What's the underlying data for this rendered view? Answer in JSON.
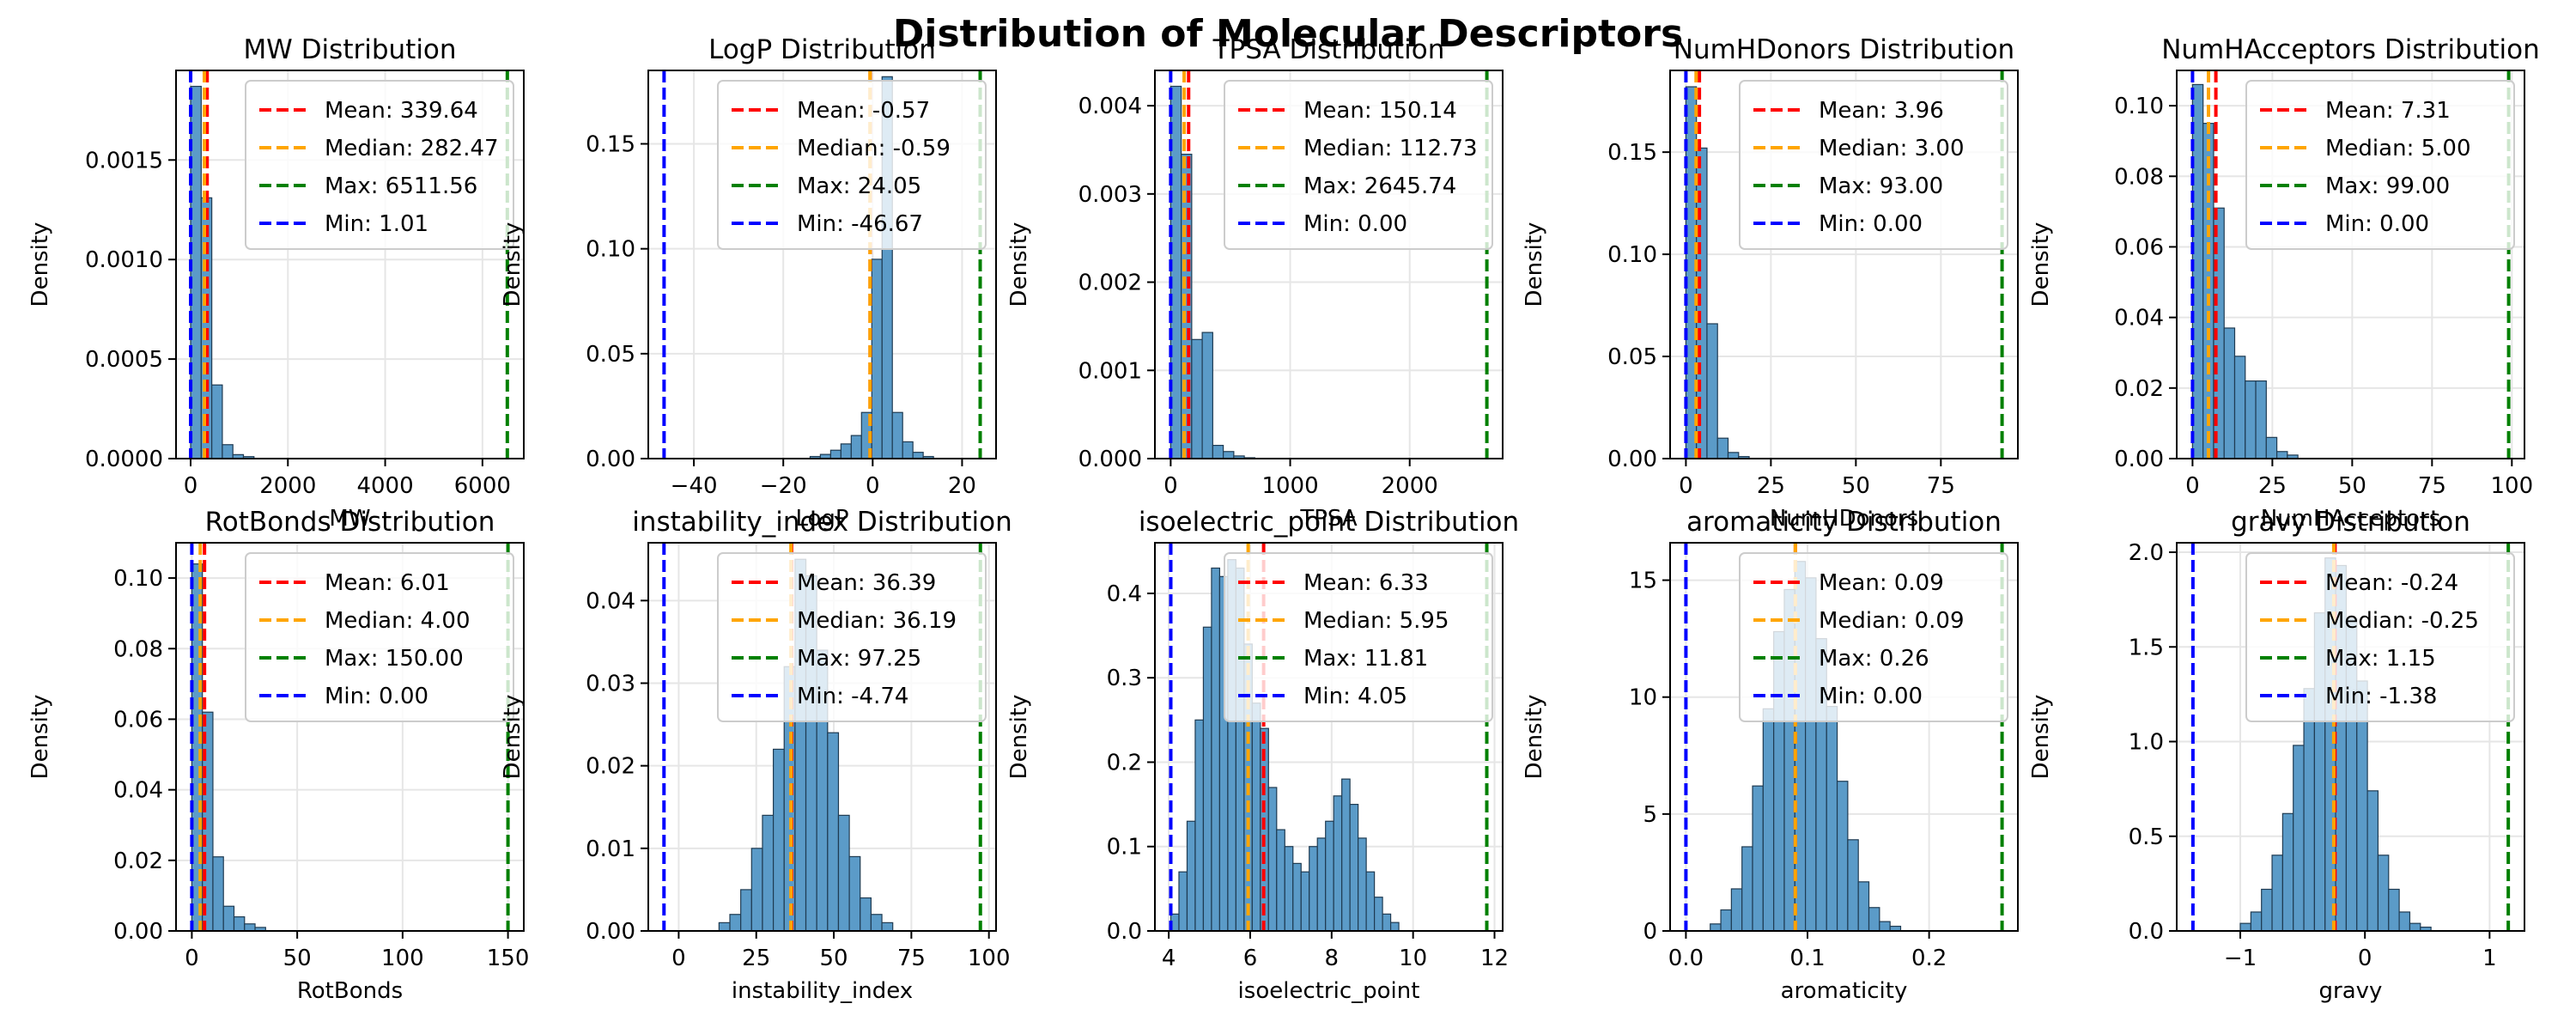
{
  "figure_title": "Distribution of Molecular Descriptors",
  "colors": {
    "bar_fill": "#5b9bc8",
    "bar_edge": "#1f3b52",
    "mean": "#ff0000",
    "median": "#ffa500",
    "max": "#008000",
    "min": "#0000ff",
    "grid": "#e6e6e6"
  },
  "chart_data": [
    {
      "type": "bar",
      "title": "MW Distribution",
      "xlabel": "MW",
      "ylabel": "Density",
      "xlim": [
        -300,
        6850
      ],
      "ylim": [
        0,
        0.00195
      ],
      "xticks": [
        0,
        2000,
        4000,
        6000
      ],
      "xtick_labels": [
        "0",
        "2000",
        "4000",
        "6000"
      ],
      "yticks": [
        0,
        0.0005,
        0.001,
        0.0015
      ],
      "ytick_labels": [
        "0.0000",
        "0.0005",
        "0.0010",
        "0.0015"
      ],
      "bin_start": 1.01,
      "bin_width": 217,
      "values": [
        0.00187,
        0.00131,
        0.00037,
        7e-05,
        2e-05,
        1e-05
      ],
      "lines": {
        "mean": 339.64,
        "median": 282.47,
        "max": 6511.56,
        "min": 1.01
      },
      "legend": [
        "Mean: 339.64",
        "Median: 282.47",
        "Max: 6511.56",
        "Min: 1.01"
      ],
      "legend_pos": "top-right",
      "grid": true
    },
    {
      "type": "bar",
      "title": "LogP Distribution",
      "xlabel": "LogP",
      "ylabel": "Density",
      "xlim": [
        -50.2,
        27.6
      ],
      "ylim": [
        0,
        0.185
      ],
      "xticks": [
        -40,
        -20,
        0,
        20
      ],
      "xtick_labels": [
        "−40",
        "−20",
        "0",
        "20"
      ],
      "yticks": [
        0,
        0.05,
        0.1,
        0.15
      ],
      "ytick_labels": [
        "0.00",
        "0.05",
        "0.10",
        "0.15"
      ],
      "bin_start": -14,
      "bin_width": 2.3,
      "values": [
        0.001,
        0.002,
        0.004,
        0.007,
        0.011,
        0.022,
        0.095,
        0.182,
        0.022,
        0.008,
        0.003,
        0.001
      ],
      "lines": {
        "mean": -0.57,
        "median": -0.59,
        "max": 24.05,
        "min": -46.67
      },
      "legend": [
        "Mean: -0.57",
        "Median: -0.59",
        "Max: 24.05",
        "Min: -46.67"
      ],
      "legend_pos": "top-right",
      "grid": true
    },
    {
      "type": "bar",
      "title": "TPSA Distribution",
      "xlabel": "TPSA",
      "ylabel": "Density",
      "xlim": [
        -132,
        2778
      ],
      "ylim": [
        0,
        0.0044
      ],
      "xticks": [
        0,
        1000,
        2000
      ],
      "xtick_labels": [
        "0",
        "1000",
        "2000"
      ],
      "yticks": [
        0,
        0.001,
        0.002,
        0.003,
        0.004
      ],
      "ytick_labels": [
        "0.000",
        "0.001",
        "0.002",
        "0.003",
        "0.004"
      ],
      "bin_start": 0,
      "bin_width": 88,
      "values": [
        0.00422,
        0.00345,
        0.00135,
        0.00143,
        0.00015,
        8e-05,
        3e-05,
        1e-05
      ],
      "lines": {
        "mean": 150.14,
        "median": 112.73,
        "max": 2645.74,
        "min": 0.0
      },
      "legend": [
        "Mean: 150.14",
        "Median: 112.73",
        "Max: 2645.74",
        "Min: 0.00"
      ],
      "legend_pos": "top-right",
      "grid": true
    },
    {
      "type": "bar",
      "title": "NumHDonors Distribution",
      "xlabel": "NumHDonors",
      "ylabel": "Density",
      "xlim": [
        -4.65,
        97.65
      ],
      "ylim": [
        0,
        0.19
      ],
      "xticks": [
        0,
        25,
        50,
        75
      ],
      "xtick_labels": [
        "0",
        "25",
        "50",
        "75"
      ],
      "yticks": [
        0,
        0.05,
        0.1,
        0.15
      ],
      "ytick_labels": [
        "0.00",
        "0.05",
        "0.10",
        "0.15"
      ],
      "bin_start": 0,
      "bin_width": 3.1,
      "values": [
        0.182,
        0.152,
        0.066,
        0.01,
        0.003,
        0.001
      ],
      "lines": {
        "mean": 3.96,
        "median": 3.0,
        "max": 93.0,
        "min": 0.0
      },
      "legend": [
        "Mean: 3.96",
        "Median: 3.00",
        "Max: 93.00",
        "Min: 0.00"
      ],
      "legend_pos": "top-right",
      "grid": true
    },
    {
      "type": "bar",
      "title": "NumHAcceptors Distribution",
      "xlabel": "NumHAcceptors",
      "ylabel": "Density",
      "xlim": [
        -4.95,
        103.95
      ],
      "ylim": [
        0,
        0.11
      ],
      "xticks": [
        0,
        25,
        50,
        75,
        100
      ],
      "xtick_labels": [
        "0",
        "25",
        "50",
        "75",
        "100"
      ],
      "yticks": [
        0,
        0.02,
        0.04,
        0.06,
        0.08,
        0.1
      ],
      "ytick_labels": [
        "0.00",
        "0.02",
        "0.04",
        "0.06",
        "0.08",
        "0.10"
      ],
      "bin_start": 0,
      "bin_width": 3.3,
      "values": [
        0.106,
        0.095,
        0.071,
        0.037,
        0.029,
        0.022,
        0.022,
        0.006,
        0.002,
        0.001
      ],
      "lines": {
        "mean": 7.31,
        "median": 5.0,
        "max": 99.0,
        "min": 0.0
      },
      "legend": [
        "Mean: 7.31",
        "Median: 5.00",
        "Max: 99.00",
        "Min: 0.00"
      ],
      "legend_pos": "top-right",
      "grid": true
    },
    {
      "type": "bar",
      "title": "RotBonds Distribution",
      "xlabel": "RotBonds",
      "ylabel": "Density",
      "xlim": [
        -7.5,
        157.5
      ],
      "ylim": [
        0,
        0.11
      ],
      "xticks": [
        0,
        50,
        100,
        150
      ],
      "xtick_labels": [
        "0",
        "50",
        "100",
        "150"
      ],
      "yticks": [
        0,
        0.02,
        0.04,
        0.06,
        0.08,
        0.1
      ],
      "ytick_labels": [
        "0.00",
        "0.02",
        "0.04",
        "0.06",
        "0.08",
        "0.10"
      ],
      "bin_start": 0,
      "bin_width": 5,
      "values": [
        0.104,
        0.062,
        0.021,
        0.007,
        0.004,
        0.002,
        0.001
      ],
      "lines": {
        "mean": 6.01,
        "median": 4.0,
        "max": 150.0,
        "min": 0.0
      },
      "legend": [
        "Mean: 6.01",
        "Median: 4.00",
        "Max: 150.00",
        "Min: 0.00"
      ],
      "legend_pos": "top-right",
      "grid": true
    },
    {
      "type": "bar",
      "title": "instability_index Distribution",
      "xlabel": "instability_index",
      "ylabel": "Density",
      "xlim": [
        -9.8,
        102.3
      ],
      "ylim": [
        0,
        0.047
      ],
      "xticks": [
        0,
        25,
        50,
        75,
        100
      ],
      "xtick_labels": [
        "0",
        "25",
        "50",
        "75",
        "100"
      ],
      "yticks": [
        0,
        0.01,
        0.02,
        0.03,
        0.04
      ],
      "ytick_labels": [
        "0.00",
        "0.01",
        "0.02",
        "0.03",
        "0.04"
      ],
      "bin_start": 13,
      "bin_width": 3.5,
      "values": [
        0.001,
        0.002,
        0.005,
        0.01,
        0.014,
        0.022,
        0.032,
        0.045,
        0.043,
        0.034,
        0.024,
        0.014,
        0.009,
        0.004,
        0.002,
        0.001
      ],
      "lines": {
        "mean": 36.39,
        "median": 36.19,
        "max": 97.25,
        "min": -4.74
      },
      "legend": [
        "Mean: 36.39",
        "Median: 36.19",
        "Max: 97.25",
        "Min: -4.74"
      ],
      "legend_pos": "top-right",
      "grid": true
    },
    {
      "type": "bar",
      "title": "isoelectric_point Distribution",
      "xlabel": "isoelectric_point",
      "ylabel": "Density",
      "xlim": [
        3.66,
        12.2
      ],
      "ylim": [
        0,
        0.46
      ],
      "xticks": [
        4,
        6,
        8,
        10,
        12
      ],
      "xtick_labels": [
        "4",
        "6",
        "8",
        "10",
        "12"
      ],
      "bin_start": 4.05,
      "bin_width": 0.2,
      "yticks": [
        0,
        0.1,
        0.2,
        0.3,
        0.4
      ],
      "ytick_labels": [
        "0.0",
        "0.1",
        "0.2",
        "0.3",
        "0.4"
      ],
      "values": [
        0.02,
        0.07,
        0.13,
        0.25,
        0.36,
        0.43,
        0.42,
        0.44,
        0.43,
        0.34,
        0.27,
        0.24,
        0.17,
        0.12,
        0.1,
        0.08,
        0.07,
        0.1,
        0.11,
        0.13,
        0.16,
        0.18,
        0.15,
        0.11,
        0.07,
        0.04,
        0.02,
        0.01
      ],
      "lines": {
        "mean": 6.33,
        "median": 5.95,
        "max": 11.81,
        "min": 4.05
      },
      "legend": [
        "Mean: 6.33",
        "Median: 5.95",
        "Max: 11.81",
        "Min: 4.05"
      ],
      "legend_pos": "top-right",
      "grid": true
    },
    {
      "type": "bar",
      "title": "aromaticity Distribution",
      "xlabel": "aromaticity",
      "ylabel": "Density",
      "xlim": [
        -0.013,
        0.273
      ],
      "ylim": [
        0,
        16.6
      ],
      "xticks": [
        0,
        0.1,
        0.2
      ],
      "xtick_labels": [
        "0.0",
        "0.1",
        "0.2"
      ],
      "yticks": [
        0,
        5,
        10,
        15
      ],
      "ytick_labels": [
        "0",
        "5",
        "10",
        "15"
      ],
      "bin_start": 0.02,
      "bin_width": 0.0087,
      "values": [
        0.3,
        0.9,
        1.8,
        3.6,
        6.2,
        9.5,
        12.8,
        14.6,
        15.8,
        15.1,
        12.5,
        9.6,
        6.4,
        3.9,
        2.1,
        1.0,
        0.4,
        0.2
      ],
      "lines": {
        "mean": 0.09,
        "median": 0.09,
        "max": 0.26,
        "min": 0.0
      },
      "legend": [
        "Mean: 0.09",
        "Median: 0.09",
        "Max: 0.26",
        "Min: 0.00"
      ],
      "legend_pos": "top-right",
      "grid": true
    },
    {
      "type": "bar",
      "title": "gravy Distribution",
      "xlabel": "gravy",
      "ylabel": "Density",
      "xlim": [
        -1.51,
        1.28
      ],
      "ylim": [
        0,
        2.05
      ],
      "xticks": [
        -1,
        0,
        1
      ],
      "xtick_labels": [
        "−1",
        "0",
        "1"
      ],
      "yticks": [
        0,
        0.5,
        1,
        1.5,
        2
      ],
      "ytick_labels": [
        "0.0",
        "0.5",
        "1.0",
        "1.5",
        "2.0"
      ],
      "bin_start": -1.0,
      "bin_width": 0.085,
      "values": [
        0.04,
        0.1,
        0.22,
        0.4,
        0.62,
        0.98,
        1.28,
        1.68,
        1.97,
        1.93,
        1.65,
        1.32,
        0.74,
        0.4,
        0.22,
        0.1,
        0.04,
        0.02
      ],
      "lines": {
        "mean": -0.24,
        "median": -0.25,
        "max": 1.15,
        "min": -1.38
      },
      "legend": [
        "Mean: -0.24",
        "Median: -0.25",
        "Max: 1.15",
        "Min: -1.38"
      ],
      "legend_pos": "top-right",
      "grid": true
    }
  ]
}
